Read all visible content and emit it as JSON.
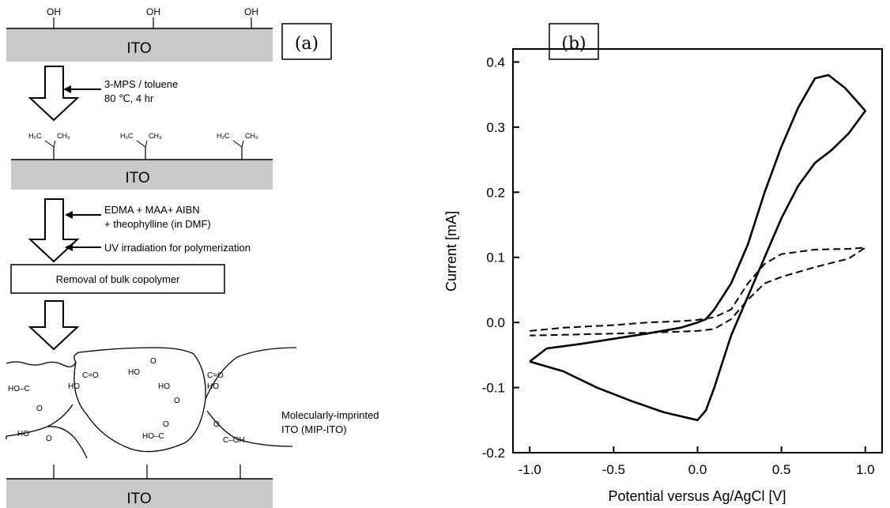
{
  "panel_a": {
    "label": "(a)",
    "oh_label": "OH",
    "substrate_label": "ITO",
    "step1_line1": "3-MPS / toluene",
    "step1_line2": "80 ℃, 4 hr",
    "methacryl_left": "H₂C",
    "methacryl_right": "CH₃",
    "step2_line1": "EDMA + MAA+ AIBN",
    "step2_line2": "+ theophylline (in DMF)",
    "step3": "UV irradiation for polymerization",
    "box_label": "Removal of bulk copolymer",
    "mip_line1": "Molecularly-imprinted",
    "mip_line2": "ITO (MIP-ITO)",
    "groups": {
      "hoc": "HO–C",
      "o_eq": "O",
      "ho": "HO",
      "c_eq_o": "C=O",
      "ho_c_left": "HO–C",
      "c_oh": "C–OH"
    }
  },
  "panel_b": {
    "label": "(b)"
  },
  "chart_data": {
    "type": "line",
    "title": "",
    "xlabel": "Potential versus Ag/AgCl [V]",
    "ylabel": "Current [mA]",
    "xlim": [
      -1.1,
      1.1
    ],
    "ylim": [
      -0.2,
      0.42
    ],
    "xticks": [
      -1.0,
      -0.5,
      0.0,
      0.5,
      1.0
    ],
    "xtick_labels": [
      "-1.0",
      "-0.5",
      "0.0",
      "0.5",
      "1.0"
    ],
    "yticks": [
      -0.2,
      -0.1,
      0.0,
      0.1,
      0.2,
      0.3,
      0.4
    ],
    "ytick_labels": [
      "-0.2",
      "-0.1",
      "0.0",
      "0.1",
      "0.2",
      "0.3",
      "0.4"
    ],
    "grid": false,
    "series": [
      {
        "style": "solid",
        "x": [
          -1.0,
          -0.9,
          -0.7,
          -0.5,
          -0.3,
          -0.1,
          0.0,
          0.05,
          0.1,
          0.2,
          0.3,
          0.4,
          0.5,
          0.6,
          0.7,
          0.78,
          0.88,
          1.0,
          0.9,
          0.8,
          0.7,
          0.6,
          0.5,
          0.4,
          0.3,
          0.2,
          0.15,
          0.1,
          0.05,
          0.0,
          -0.2,
          -0.4,
          -0.6,
          -0.8,
          -1.0
        ],
        "y": [
          -0.06,
          -0.04,
          -0.033,
          -0.025,
          -0.017,
          -0.008,
          0.0,
          0.005,
          0.02,
          0.06,
          0.12,
          0.2,
          0.27,
          0.33,
          0.375,
          0.38,
          0.36,
          0.325,
          0.29,
          0.265,
          0.245,
          0.21,
          0.16,
          0.1,
          0.04,
          -0.02,
          -0.06,
          -0.1,
          -0.135,
          -0.15,
          -0.138,
          -0.12,
          -0.1,
          -0.075,
          -0.06
        ]
      },
      {
        "style": "dashed",
        "x": [
          -1.0,
          -0.8,
          -0.5,
          -0.3,
          -0.1,
          0.0,
          0.1,
          0.2,
          0.3,
          0.4,
          0.5,
          0.7,
          0.9,
          1.0,
          0.9,
          0.7,
          0.5,
          0.4,
          0.3,
          0.2,
          0.1,
          0.0,
          -0.2,
          -0.5,
          -0.8,
          -1.0
        ],
        "y": [
          -0.013,
          -0.008,
          -0.004,
          0.0,
          0.002,
          0.004,
          0.008,
          0.02,
          0.06,
          0.09,
          0.105,
          0.112,
          0.113,
          0.115,
          0.098,
          0.085,
          0.07,
          0.06,
          0.035,
          0.005,
          -0.01,
          -0.013,
          -0.015,
          -0.017,
          -0.019,
          -0.02
        ]
      }
    ]
  }
}
